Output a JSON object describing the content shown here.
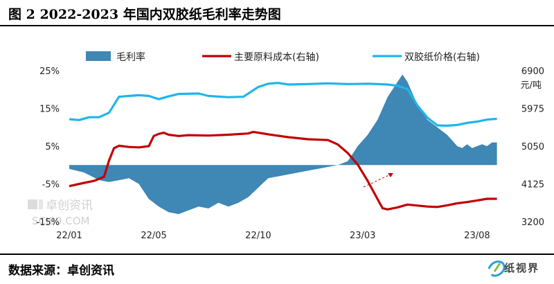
{
  "title": "图 2  2022-2023 年国内双胶纸毛利率走势图",
  "footer": {
    "source": "数据来源：卓创资讯",
    "logo_text": "纸视界"
  },
  "watermark": {
    "name": "卓创资讯",
    "url": "SCI99.COM"
  },
  "colors": {
    "margin": "#3f87b4",
    "cost": "#c00000",
    "price": "#1fb5ea"
  },
  "chart_data": {
    "type": "area+line",
    "legend": [
      "毛利率",
      "主要原料成本(右轴)",
      "双胶纸价格(右轴)"
    ],
    "right_unit": "元/吨",
    "x_ticks": [
      "22/01",
      "22/05",
      "22/10",
      "23/03",
      "23/08"
    ],
    "x_tick_positions": [
      0,
      17,
      38,
      59,
      82
    ],
    "x_range": [
      0,
      88
    ],
    "left_axis": {
      "ticks": [
        "25%",
        "15%",
        "5%",
        "-5%",
        "-15%"
      ],
      "values": [
        25,
        15,
        5,
        -5,
        -15
      ],
      "range": [
        -15,
        25
      ]
    },
    "right_axis": {
      "ticks": [
        "6900",
        "5975",
        "5050",
        "4125",
        "3200"
      ],
      "values": [
        6900,
        5975,
        5050,
        4125,
        3200
      ],
      "range": [
        3200,
        6900
      ]
    },
    "series": [
      {
        "name": "毛利率",
        "type": "area",
        "axis": "left",
        "points": [
          [
            0,
            -1
          ],
          [
            3,
            -2
          ],
          [
            6,
            -4
          ],
          [
            8,
            -4.5
          ],
          [
            10,
            -4
          ],
          [
            12,
            -3.5
          ],
          [
            14,
            -5
          ],
          [
            16,
            -9
          ],
          [
            18,
            -11
          ],
          [
            20,
            -12.5
          ],
          [
            22,
            -13
          ],
          [
            24,
            -12
          ],
          [
            26,
            -11
          ],
          [
            28,
            -11.5
          ],
          [
            30,
            -10
          ],
          [
            32,
            -11
          ],
          [
            34,
            -10
          ],
          [
            36,
            -8.5
          ],
          [
            38,
            -6
          ],
          [
            40,
            -3.5
          ],
          [
            42,
            -3
          ],
          [
            44,
            -2.5
          ],
          [
            46,
            -2
          ],
          [
            48,
            -1.5
          ],
          [
            50,
            -1
          ],
          [
            52,
            -0.5
          ],
          [
            54,
            0
          ],
          [
            56,
            1
          ],
          [
            57,
            3
          ],
          [
            58,
            5
          ],
          [
            60,
            8
          ],
          [
            62,
            12
          ],
          [
            64,
            18
          ],
          [
            66,
            22
          ],
          [
            67,
            24
          ],
          [
            68,
            22
          ],
          [
            70,
            16
          ],
          [
            72,
            12
          ],
          [
            74,
            10
          ],
          [
            75,
            9
          ],
          [
            76,
            8
          ],
          [
            77,
            6.5
          ],
          [
            78,
            5
          ],
          [
            79,
            4.5
          ],
          [
            80,
            5.5
          ],
          [
            81,
            4.5
          ],
          [
            82,
            5
          ],
          [
            83,
            5.5
          ],
          [
            84,
            5
          ],
          [
            85,
            6
          ],
          [
            86,
            6
          ]
        ]
      },
      {
        "name": "主要原料成本(右轴)",
        "type": "line",
        "axis": "right",
        "points": [
          [
            0,
            4070
          ],
          [
            3,
            4150
          ],
          [
            5,
            4200
          ],
          [
            7,
            4300
          ],
          [
            8,
            4700
          ],
          [
            9,
            5000
          ],
          [
            10,
            5060
          ],
          [
            12,
            5030
          ],
          [
            14,
            5020
          ],
          [
            16,
            5050
          ],
          [
            17,
            5300
          ],
          [
            18,
            5350
          ],
          [
            19,
            5380
          ],
          [
            20,
            5330
          ],
          [
            22,
            5300
          ],
          [
            24,
            5320
          ],
          [
            28,
            5310
          ],
          [
            32,
            5330
          ],
          [
            36,
            5360
          ],
          [
            37,
            5400
          ],
          [
            38,
            5380
          ],
          [
            40,
            5340
          ],
          [
            44,
            5270
          ],
          [
            48,
            5220
          ],
          [
            52,
            5200
          ],
          [
            54,
            5090
          ],
          [
            56,
            4880
          ],
          [
            58,
            4600
          ],
          [
            60,
            4200
          ],
          [
            62,
            3750
          ],
          [
            63,
            3530
          ],
          [
            64,
            3500
          ],
          [
            66,
            3550
          ],
          [
            68,
            3620
          ],
          [
            72,
            3570
          ],
          [
            74,
            3560
          ],
          [
            76,
            3600
          ],
          [
            78,
            3650
          ],
          [
            80,
            3680
          ],
          [
            82,
            3720
          ],
          [
            84,
            3760
          ],
          [
            86,
            3760
          ]
        ]
      },
      {
        "name": "双胶纸价格(右轴)",
        "type": "line",
        "axis": "right",
        "points": [
          [
            0,
            5710
          ],
          [
            2,
            5690
          ],
          [
            4,
            5760
          ],
          [
            6,
            5760
          ],
          [
            8,
            5870
          ],
          [
            10,
            6260
          ],
          [
            12,
            6280
          ],
          [
            14,
            6300
          ],
          [
            16,
            6280
          ],
          [
            18,
            6200
          ],
          [
            20,
            6270
          ],
          [
            22,
            6330
          ],
          [
            26,
            6340
          ],
          [
            28,
            6280
          ],
          [
            32,
            6250
          ],
          [
            35,
            6260
          ],
          [
            38,
            6500
          ],
          [
            40,
            6580
          ],
          [
            42,
            6600
          ],
          [
            44,
            6560
          ],
          [
            48,
            6570
          ],
          [
            52,
            6590
          ],
          [
            56,
            6570
          ],
          [
            60,
            6580
          ],
          [
            62,
            6570
          ],
          [
            64,
            6560
          ],
          [
            66,
            6530
          ],
          [
            68,
            6450
          ],
          [
            70,
            6050
          ],
          [
            72,
            5750
          ],
          [
            74,
            5560
          ],
          [
            76,
            5550
          ],
          [
            78,
            5570
          ],
          [
            80,
            5620
          ],
          [
            82,
            5650
          ],
          [
            84,
            5700
          ],
          [
            86,
            5720
          ]
        ]
      }
    ]
  }
}
